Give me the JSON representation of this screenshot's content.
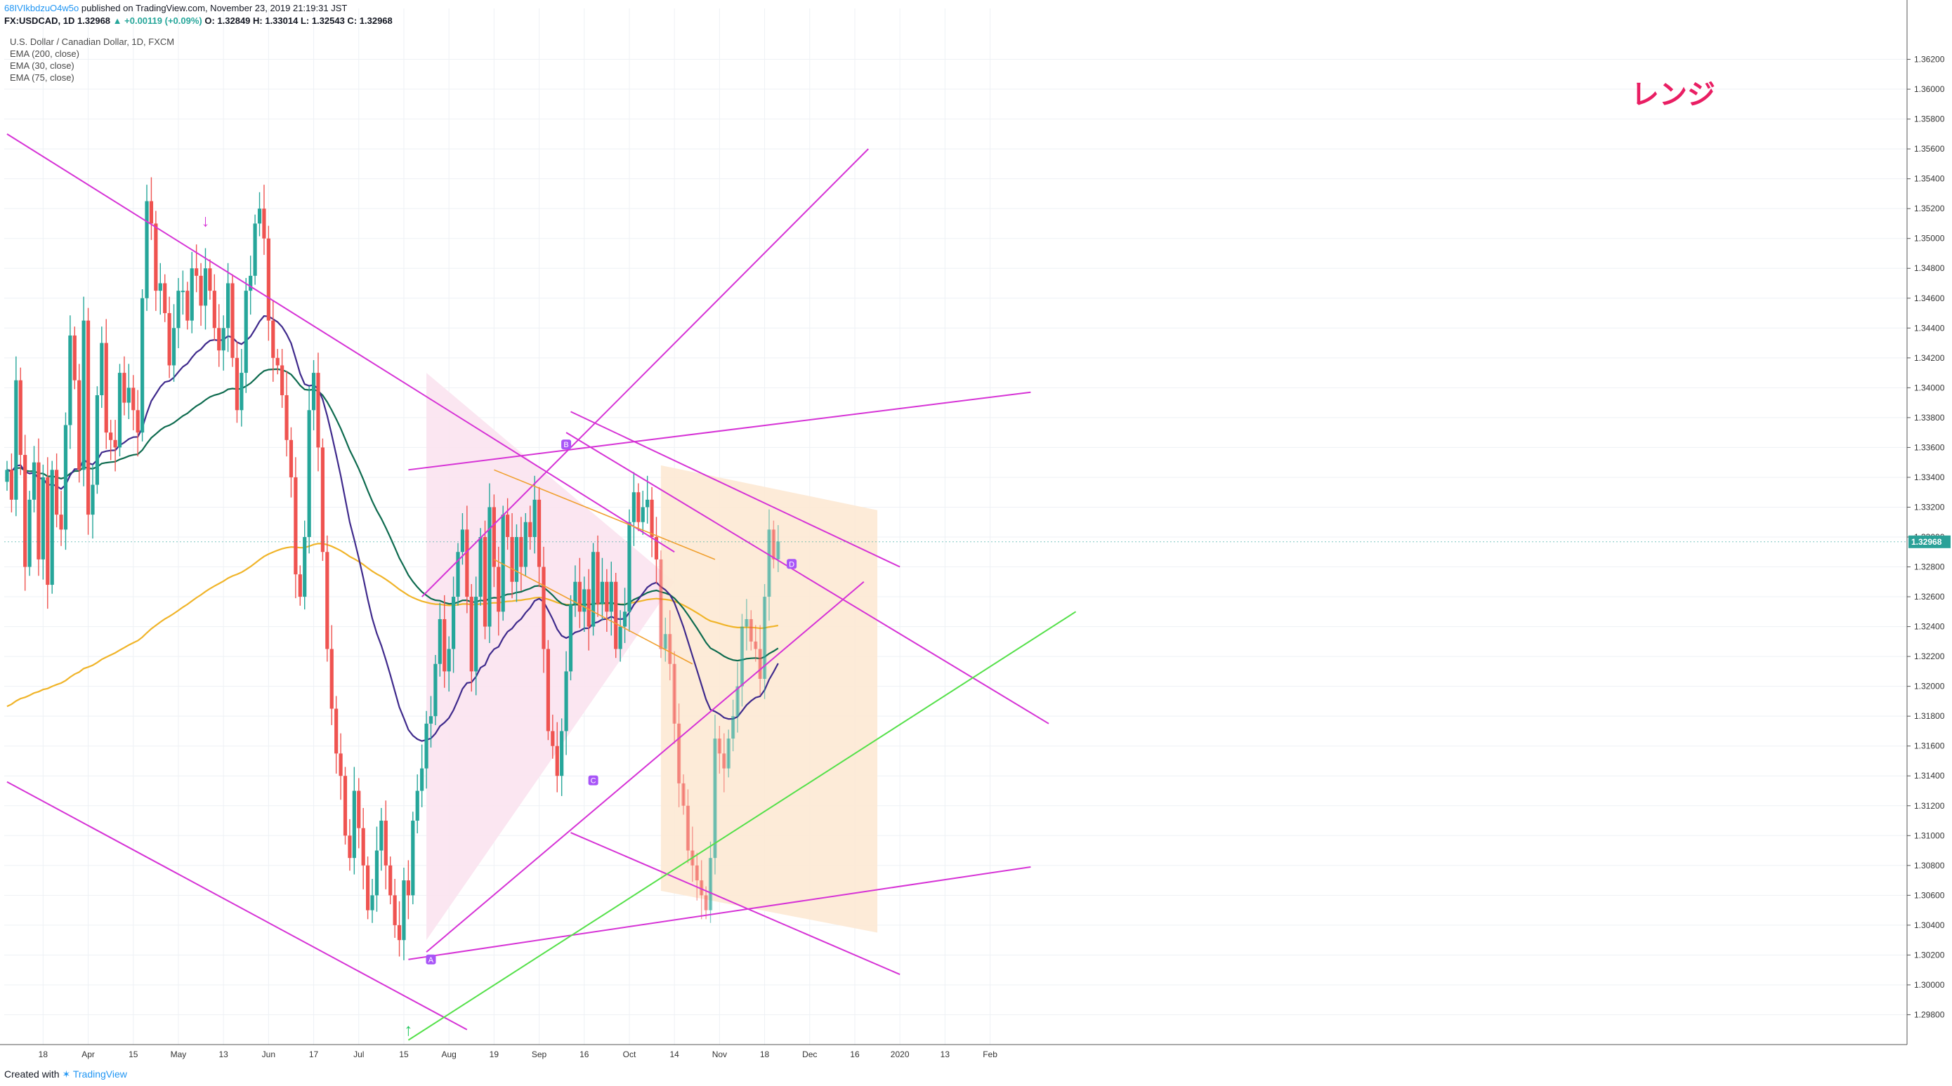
{
  "header": {
    "author": "68IVIkbdzuO4w5o",
    "published": "published on TradingView.com, November 23, 2019 21:19:31 JST",
    "symbol": "FX:USDCAD, 1D",
    "last": "1.32968",
    "change": "▲ +0.00119 (+0.09%)",
    "ohlc": "O: 1.32849  H: 1.33014  L: 1.32543  C: 1.32968"
  },
  "legend": {
    "title": "U.S. Dollar / Canadian Dollar, 1D, FXCM",
    "ema200": "EMA (200, close)",
    "ema30": "EMA (30, close)",
    "ema75": "EMA (75, close)"
  },
  "annotation_text": "レンジ",
  "footer": {
    "prefix": "Created with",
    "brand": "TradingView"
  },
  "colors": {
    "up": "#26a69a",
    "down": "#ef5350",
    "trendline": "#d633d6",
    "ema200": "#f0b429",
    "ema30": "#3f2a8c",
    "ema75": "#0e6b4f",
    "green_line": "#55e04a",
    "pink_zone": "#fbe3f0",
    "orange_zone": "#fde9d4",
    "price_label": "#2aa198"
  },
  "chart_data": {
    "type": "candlestick",
    "title": "U.S. Dollar / Canadian Dollar, 1D, FXCM",
    "ylim": [
      1.296,
      1.364
    ],
    "y_ticks": [
      "1.36200",
      "1.36000",
      "1.35800",
      "1.35600",
      "1.35400",
      "1.35200",
      "1.35000",
      "1.34800",
      "1.34600",
      "1.34400",
      "1.34200",
      "1.34000",
      "1.33800",
      "1.33600",
      "1.33400",
      "1.33200",
      "1.33000",
      "1.32800",
      "1.32600",
      "1.32400",
      "1.32200",
      "1.32000",
      "1.31800",
      "1.31600",
      "1.31400",
      "1.31200",
      "1.31000",
      "1.30800",
      "1.30600",
      "1.30400",
      "1.30200",
      "1.30000",
      "1.29800"
    ],
    "x_ticks": [
      {
        "label": "18",
        "i": 8
      },
      {
        "label": "Apr",
        "i": 18
      },
      {
        "label": "15",
        "i": 28
      },
      {
        "label": "May",
        "i": 38
      },
      {
        "label": "13",
        "i": 48
      },
      {
        "label": "Jun",
        "i": 58
      },
      {
        "label": "17",
        "i": 68
      },
      {
        "label": "Jul",
        "i": 78
      },
      {
        "label": "15",
        "i": 88
      },
      {
        "label": "Aug",
        "i": 98
      },
      {
        "label": "19",
        "i": 108
      },
      {
        "label": "Sep",
        "i": 118
      },
      {
        "label": "16",
        "i": 128
      },
      {
        "label": "Oct",
        "i": 138
      },
      {
        "label": "14",
        "i": 148
      },
      {
        "label": "Nov",
        "i": 158
      },
      {
        "label": "18",
        "i": 168
      },
      {
        "label": "Dec",
        "i": 178
      },
      {
        "label": "16",
        "i": 188
      },
      {
        "label": "2020",
        "i": 198
      },
      {
        "label": "13",
        "i": 208
      },
      {
        "label": "Feb",
        "i": 218
      }
    ],
    "last_price": 1.32968,
    "series": [
      {
        "closes": [
          1.3345,
          1.3325,
          1.3405,
          1.3355,
          1.328,
          1.3325,
          1.335,
          1.3285,
          1.334,
          1.3268,
          1.3345,
          1.3315,
          1.3305,
          1.3375,
          1.3435,
          1.3405,
          1.3345,
          1.3445,
          1.3315,
          1.3335,
          1.3395,
          1.343,
          1.337,
          1.3365,
          1.336,
          1.341,
          1.339,
          1.34,
          1.3385,
          1.337,
          1.346,
          1.3525,
          1.351,
          1.3465,
          1.347,
          1.345,
          1.3415,
          1.344,
          1.3465,
          1.3465,
          1.3445,
          1.348,
          1.3475,
          1.3455,
          1.348,
          1.3465,
          1.344,
          1.3425,
          1.344,
          1.347,
          1.342,
          1.3385,
          1.341,
          1.3465,
          1.3475,
          1.351,
          1.352,
          1.35,
          1.3445,
          1.342,
          1.3415,
          1.3395,
          1.3365,
          1.334,
          1.3275,
          1.326,
          1.33,
          1.3385,
          1.341,
          1.336,
          1.329,
          1.3225,
          1.3185,
          1.3155,
          1.314,
          1.31,
          1.3085,
          1.313,
          1.3105,
          1.308,
          1.305,
          1.306,
          1.309,
          1.311,
          1.308,
          1.306,
          1.304,
          1.303,
          1.307,
          1.306,
          1.311,
          1.313,
          1.3145,
          1.3175,
          1.318,
          1.3215,
          1.3245,
          1.321,
          1.3225,
          1.326,
          1.329,
          1.3305,
          1.326,
          1.321,
          1.326,
          1.33,
          1.324,
          1.332,
          1.328,
          1.325,
          1.3315,
          1.33,
          1.327,
          1.33,
          1.328,
          1.331,
          1.33,
          1.3325,
          1.328,
          1.3225,
          1.317,
          1.316,
          1.314,
          1.317,
          1.321,
          1.3255,
          1.327,
          1.325,
          1.3265,
          1.324,
          1.329,
          1.3255,
          1.327,
          1.325,
          1.327,
          1.3225,
          1.324,
          1.325,
          1.331,
          1.333,
          1.331,
          1.332,
          1.3325,
          1.33,
          1.3285,
          1.3225,
          1.3235,
          1.3215,
          1.3175,
          1.3135,
          1.312,
          1.309,
          1.308,
          1.307,
          1.306,
          1.305,
          1.3085,
          1.3165,
          1.3155,
          1.3145,
          1.3165,
          1.318,
          1.32,
          1.324,
          1.3245,
          1.323,
          1.3225,
          1.3205,
          1.326,
          1.3305,
          1.3285,
          1.3297
        ]
      }
    ]
  }
}
